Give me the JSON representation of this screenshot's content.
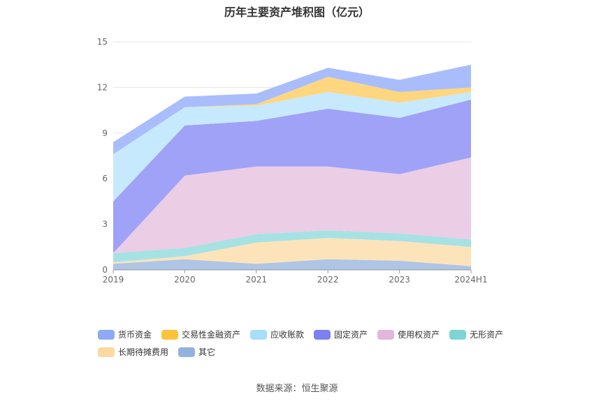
{
  "title": "历年主要资产堆积图（亿元）",
  "source": "数据来源：恒生聚源",
  "chart_data": {
    "type": "area",
    "stacked": true,
    "categories": [
      "2019",
      "2020",
      "2021",
      "2022",
      "2023",
      "2024H1"
    ],
    "ylim": [
      0,
      15
    ],
    "yticks": [
      "0",
      "3",
      "6",
      "9",
      "12",
      "15"
    ],
    "grid": true,
    "legend_position": "bottom",
    "series": [
      {
        "name": "其它",
        "color": "#aec5e6",
        "values": [
          0.4,
          0.7,
          0.4,
          0.7,
          0.6,
          0.25
        ]
      },
      {
        "name": "长期待摊费用",
        "color": "#fde3b9",
        "values": [
          0.1,
          0.2,
          1.4,
          1.4,
          1.3,
          1.25
        ]
      },
      {
        "name": "无形资产",
        "color": "#a6e2e3",
        "values": [
          0.6,
          0.55,
          0.55,
          0.5,
          0.5,
          0.5
        ]
      },
      {
        "name": "使用权资产",
        "color": "#ebcde5",
        "values": [
          0.0,
          4.75,
          4.45,
          4.2,
          3.9,
          5.4
        ]
      },
      {
        "name": "固定资产",
        "color": "#9fa2f7",
        "values": [
          3.4,
          3.3,
          3.0,
          3.8,
          3.7,
          3.8
        ]
      },
      {
        "name": "应收账款",
        "color": "#c7e9fd",
        "values": [
          3.1,
          1.2,
          1.0,
          1.1,
          1.0,
          0.5
        ]
      },
      {
        "name": "交易性金融资产",
        "color": "#fed67f",
        "values": [
          0.0,
          0.0,
          0.1,
          1.0,
          0.7,
          0.3
        ]
      },
      {
        "name": "货币资金",
        "color": "#a9bdfd",
        "values": [
          0.8,
          0.7,
          0.7,
          0.6,
          0.8,
          1.5
        ]
      }
    ]
  },
  "legend": [
    {
      "label": "货币资金",
      "color": "#8ea9f6"
    },
    {
      "label": "交易性金融资产",
      "color": "#fdc23c"
    },
    {
      "label": "应收账款",
      "color": "#a8ddfb"
    },
    {
      "label": "固定资产",
      "color": "#7d80f2"
    },
    {
      "label": "使用权资产",
      "color": "#e3b5da"
    },
    {
      "label": "无形资产",
      "color": "#7ed4d4"
    },
    {
      "label": "长期待摊费用",
      "color": "#fdd9a0"
    },
    {
      "label": "其它",
      "color": "#94b2de"
    }
  ]
}
